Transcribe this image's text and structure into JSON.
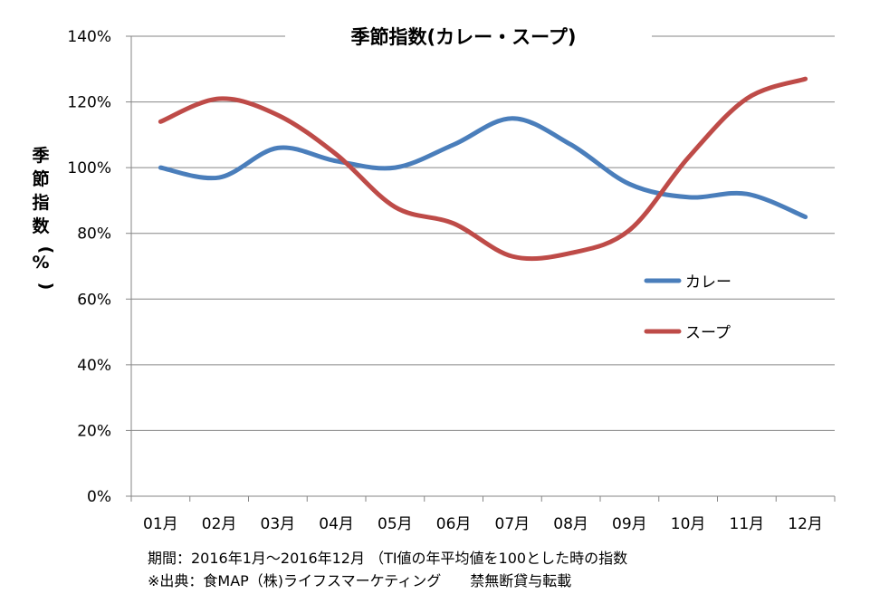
{
  "chart_data": {
    "type": "line",
    "title": "季節指数(カレー・スープ)",
    "ylabel": "季節指数(%)",
    "xlabel": "",
    "categories": [
      "01月",
      "02月",
      "03月",
      "04月",
      "05月",
      "06月",
      "07月",
      "08月",
      "09月",
      "10月",
      "11月",
      "12月"
    ],
    "ylim": [
      0,
      140
    ],
    "yticks": [
      "0%",
      "20%",
      "40%",
      "60%",
      "80%",
      "100%",
      "120%",
      "140%"
    ],
    "grid": true,
    "legend_position": "right",
    "series": [
      {
        "name": "カレー",
        "color": "#4a7ebb",
        "values": [
          100,
          97,
          106,
          102,
          100,
          107,
          115,
          107,
          95,
          91,
          92,
          85
        ]
      },
      {
        "name": "スープ",
        "color": "#be4b48",
        "values": [
          114,
          121,
          116,
          104,
          88,
          83,
          73,
          74,
          81,
          103,
          121,
          127
        ]
      }
    ]
  },
  "footnotes": {
    "period": "期間：2016年1月～2016年12月 （TI値の年平均値を100とした時の指数",
    "source": "※出典：食MAP（株)ライフスマーケティング　　禁無断貸与転載"
  }
}
